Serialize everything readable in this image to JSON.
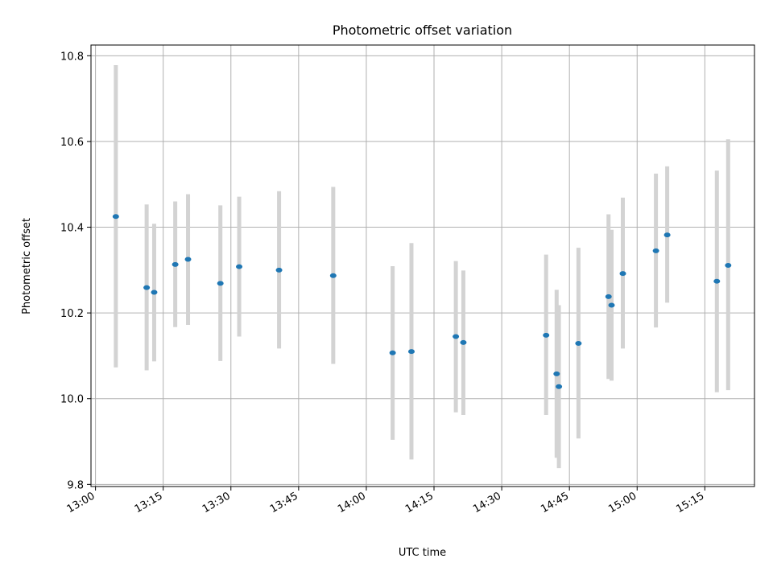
{
  "chart_data": {
    "type": "scatter",
    "title": "Photometric offset variation",
    "xlabel": "UTC time",
    "ylabel": "Photometric offset",
    "xlim": [
      "12:59",
      "15:26"
    ],
    "ylim": [
      9.795,
      10.825
    ],
    "grid": true,
    "x_ticks": [
      "13:00",
      "13:15",
      "13:30",
      "13:45",
      "14:00",
      "14:15",
      "14:30",
      "14:45",
      "15:00",
      "15:15"
    ],
    "y_ticks": [
      "9.8",
      "10.0",
      "10.2",
      "10.4",
      "10.6",
      "10.8"
    ],
    "marker_color": "#1f77b4",
    "errorbar_color": "#d3d3d3",
    "series": [
      {
        "points": [
          {
            "x": "13:04:30",
            "y": 10.425,
            "ylo": 10.073,
            "yhi": 10.778
          },
          {
            "x": "13:11:20",
            "y": 10.259,
            "ylo": 10.066,
            "yhi": 10.453
          },
          {
            "x": "13:13:00",
            "y": 10.248,
            "ylo": 10.087,
            "yhi": 10.408
          },
          {
            "x": "13:17:40",
            "y": 10.313,
            "ylo": 10.167,
            "yhi": 10.46
          },
          {
            "x": "13:20:30",
            "y": 10.325,
            "ylo": 10.172,
            "yhi": 10.477
          },
          {
            "x": "13:27:40",
            "y": 10.269,
            "ylo": 10.088,
            "yhi": 10.451
          },
          {
            "x": "13:31:50",
            "y": 10.308,
            "ylo": 10.145,
            "yhi": 10.471
          },
          {
            "x": "13:40:40",
            "y": 10.3,
            "ylo": 10.117,
            "yhi": 10.484
          },
          {
            "x": "13:52:40",
            "y": 10.287,
            "ylo": 10.081,
            "yhi": 10.494
          },
          {
            "x": "14:05:50",
            "y": 10.107,
            "ylo": 9.904,
            "yhi": 10.309
          },
          {
            "x": "14:10:00",
            "y": 10.11,
            "ylo": 9.858,
            "yhi": 10.363
          },
          {
            "x": "14:19:50",
            "y": 10.145,
            "ylo": 9.968,
            "yhi": 10.321
          },
          {
            "x": "14:21:30",
            "y": 10.131,
            "ylo": 9.962,
            "yhi": 10.299
          },
          {
            "x": "14:39:50",
            "y": 10.148,
            "ylo": 9.962,
            "yhi": 10.336
          },
          {
            "x": "14:42:10",
            "y": 10.058,
            "ylo": 9.862,
            "yhi": 10.254
          },
          {
            "x": "14:42:40",
            "y": 10.028,
            "ylo": 9.838,
            "yhi": 10.218
          },
          {
            "x": "14:47:00",
            "y": 10.129,
            "ylo": 9.907,
            "yhi": 10.352
          },
          {
            "x": "14:53:40",
            "y": 10.238,
            "ylo": 10.046,
            "yhi": 10.43
          },
          {
            "x": "14:54:20",
            "y": 10.218,
            "ylo": 10.042,
            "yhi": 10.394
          },
          {
            "x": "14:56:50",
            "y": 10.292,
            "ylo": 10.117,
            "yhi": 10.469
          },
          {
            "x": "15:04:10",
            "y": 10.345,
            "ylo": 10.166,
            "yhi": 10.525
          },
          {
            "x": "15:06:40",
            "y": 10.382,
            "ylo": 10.224,
            "yhi": 10.542
          },
          {
            "x": "15:17:40",
            "y": 10.274,
            "ylo": 10.015,
            "yhi": 10.532
          },
          {
            "x": "15:20:10",
            "y": 10.311,
            "ylo": 10.02,
            "yhi": 10.605
          }
        ]
      }
    ]
  }
}
